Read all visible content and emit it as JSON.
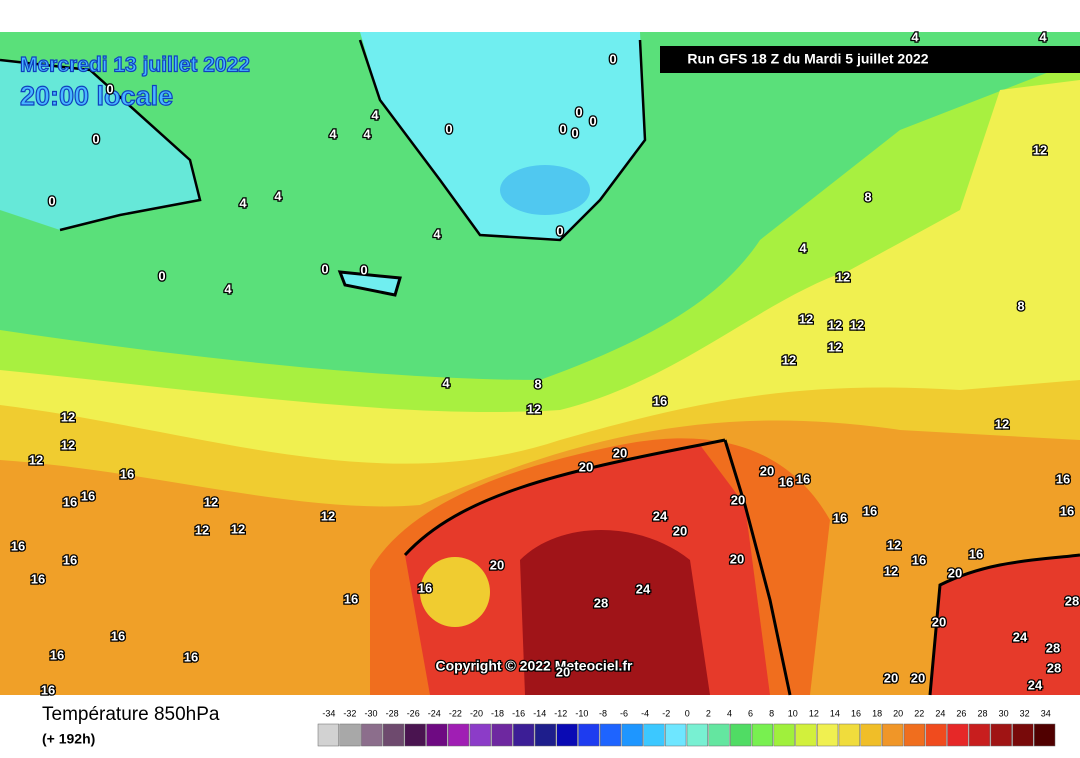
{
  "header": {
    "date": "Mercredi 13 juillet 2022",
    "time": "20:00 locale",
    "run": "Run GFS 18 Z du Mardi 5 juillet 2022"
  },
  "copyright": "Copyright © 2022 Meteociel.fr",
  "legend": {
    "title": "Température 850hPa",
    "lead": "(+ 192h)",
    "scale": [
      -34,
      -32,
      -30,
      -28,
      -26,
      -24,
      -22,
      -20,
      -18,
      -16,
      -14,
      -12,
      -10,
      -8,
      -6,
      -4,
      -2,
      0,
      2,
      4,
      6,
      8,
      10,
      12,
      14,
      16,
      18,
      20,
      22,
      24,
      26,
      28,
      30,
      32,
      34
    ],
    "colors": [
      "#d2d2d2",
      "#a8a8a8",
      "#8c6e8c",
      "#6e4a6e",
      "#4a1450",
      "#6e0a82",
      "#a01eb4",
      "#8c3cc8",
      "#6e28a0",
      "#3c1e96",
      "#1e1e8c",
      "#0a0ab4",
      "#1e3cf0",
      "#1e64ff",
      "#1e96ff",
      "#3cc8ff",
      "#6ee6ff",
      "#78f0d2",
      "#64e6a0",
      "#50dc64",
      "#78f050",
      "#a0f03c",
      "#d2f03c",
      "#f0f050",
      "#f0dc3c",
      "#f0be28",
      "#f09628",
      "#f06e1e",
      "#f04b1e",
      "#e62828",
      "#c81e1e",
      "#a01414",
      "#780a0a",
      "#500000"
    ]
  },
  "map": {
    "contour_labels": [
      4,
      4,
      0,
      0,
      0,
      4,
      4,
      4,
      0,
      0,
      0,
      0,
      0,
      12,
      4,
      4,
      8,
      0,
      4,
      0,
      4,
      0,
      0,
      0,
      4,
      12,
      8,
      12,
      12,
      12,
      12,
      12,
      4,
      8,
      12,
      16,
      12,
      12,
      12,
      12,
      20,
      20,
      16,
      20,
      16,
      16,
      16,
      16,
      20,
      12,
      12,
      12,
      12,
      24,
      20,
      16,
      16,
      16,
      16,
      16,
      16,
      12,
      16,
      16,
      20,
      20,
      12,
      20,
      16,
      16,
      24,
      16,
      28,
      28,
      20,
      16,
      24,
      28,
      16,
      16,
      28,
      20,
      20,
      20,
      16,
      24
    ]
  }
}
